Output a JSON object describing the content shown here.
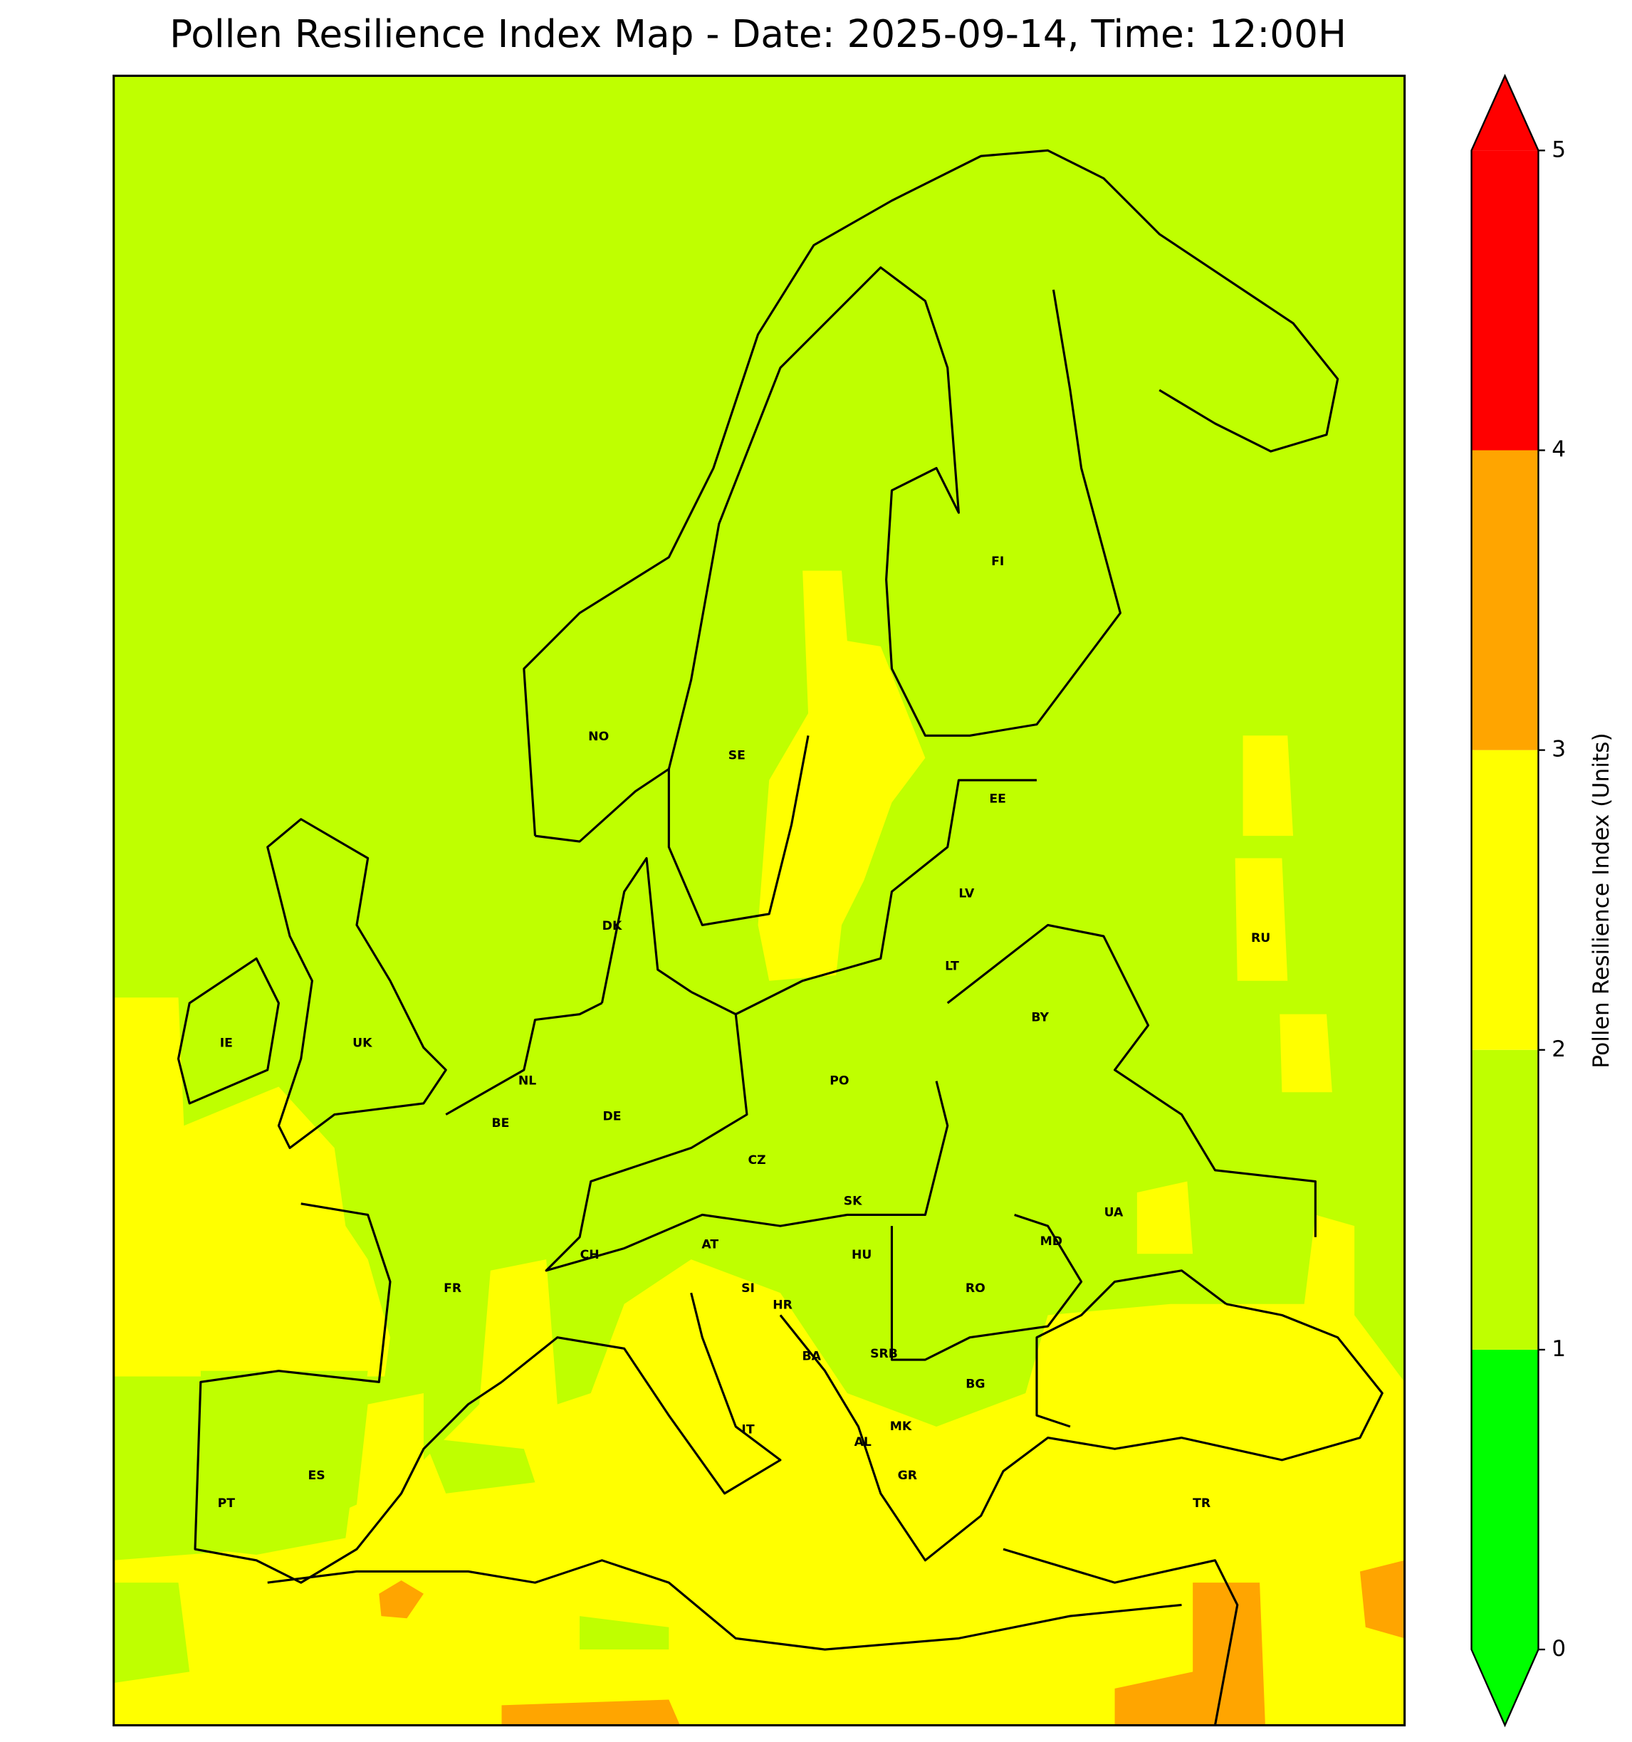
{
  "title": "Pollen Resilience Index Map - Date: 2025-09-14, Time: 12:00H",
  "countries": [
    "NO",
    "SE",
    "FI",
    "EE",
    "LV",
    "LT",
    "RU",
    "BY",
    "PO",
    "DK",
    "UK",
    "IE",
    "NL",
    "BE",
    "DE",
    "CZ",
    "SK",
    "UA",
    "MD",
    "AT",
    "HU",
    "CH",
    "FR",
    "SI",
    "HR",
    "RO",
    "BA",
    "SRB",
    "BG",
    "IT",
    "MK",
    "AL",
    "GR",
    "ES",
    "PT",
    "TR"
  ],
  "colorbar": {
    "label": "Pollen Resilience Index (Units)",
    "ticks": [
      0,
      1,
      2,
      3,
      4,
      5
    ],
    "colors": [
      "#00ff00",
      "#bfff00",
      "#ffff00",
      "#ffa500",
      "#ff0000"
    ],
    "extend": "both"
  }
}
